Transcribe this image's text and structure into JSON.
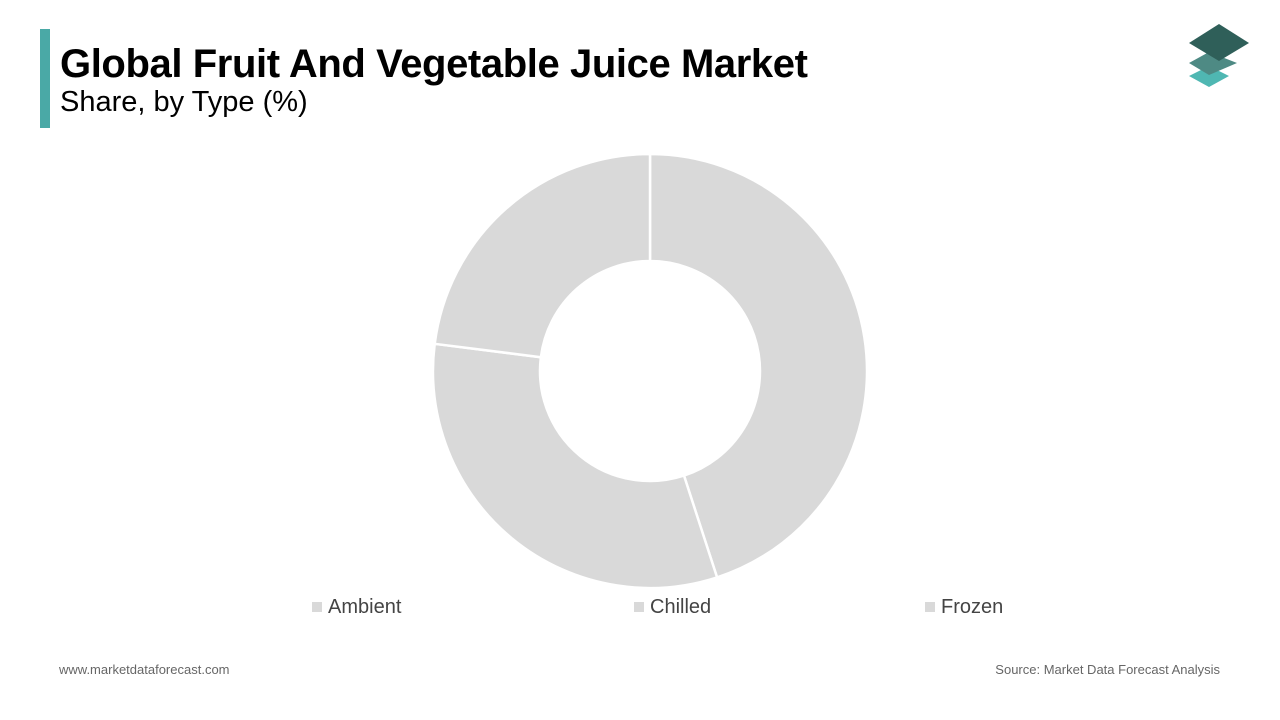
{
  "header": {
    "title": "Global Fruit And Vegetable Juice Market",
    "subtitle": "Share, by Type (%)"
  },
  "colors": {
    "accent": "#4aa9a6",
    "slice": "#d9d9d9",
    "logo_dark": "#2f5f59",
    "logo_mid": "#4e8a84",
    "logo_light": "#4fb7b2"
  },
  "logo": {
    "icon": "stacked-layers-icon"
  },
  "chart_data": {
    "type": "pie",
    "style": "donut",
    "labels": [
      "Ambient",
      "Chilled",
      "Frozen"
    ],
    "values": [
      45,
      32,
      23
    ],
    "legend_position": "bottom"
  },
  "footer": {
    "website": "www.marketdataforecast.com",
    "source": "Source: Market Data Forecast Analysis"
  }
}
